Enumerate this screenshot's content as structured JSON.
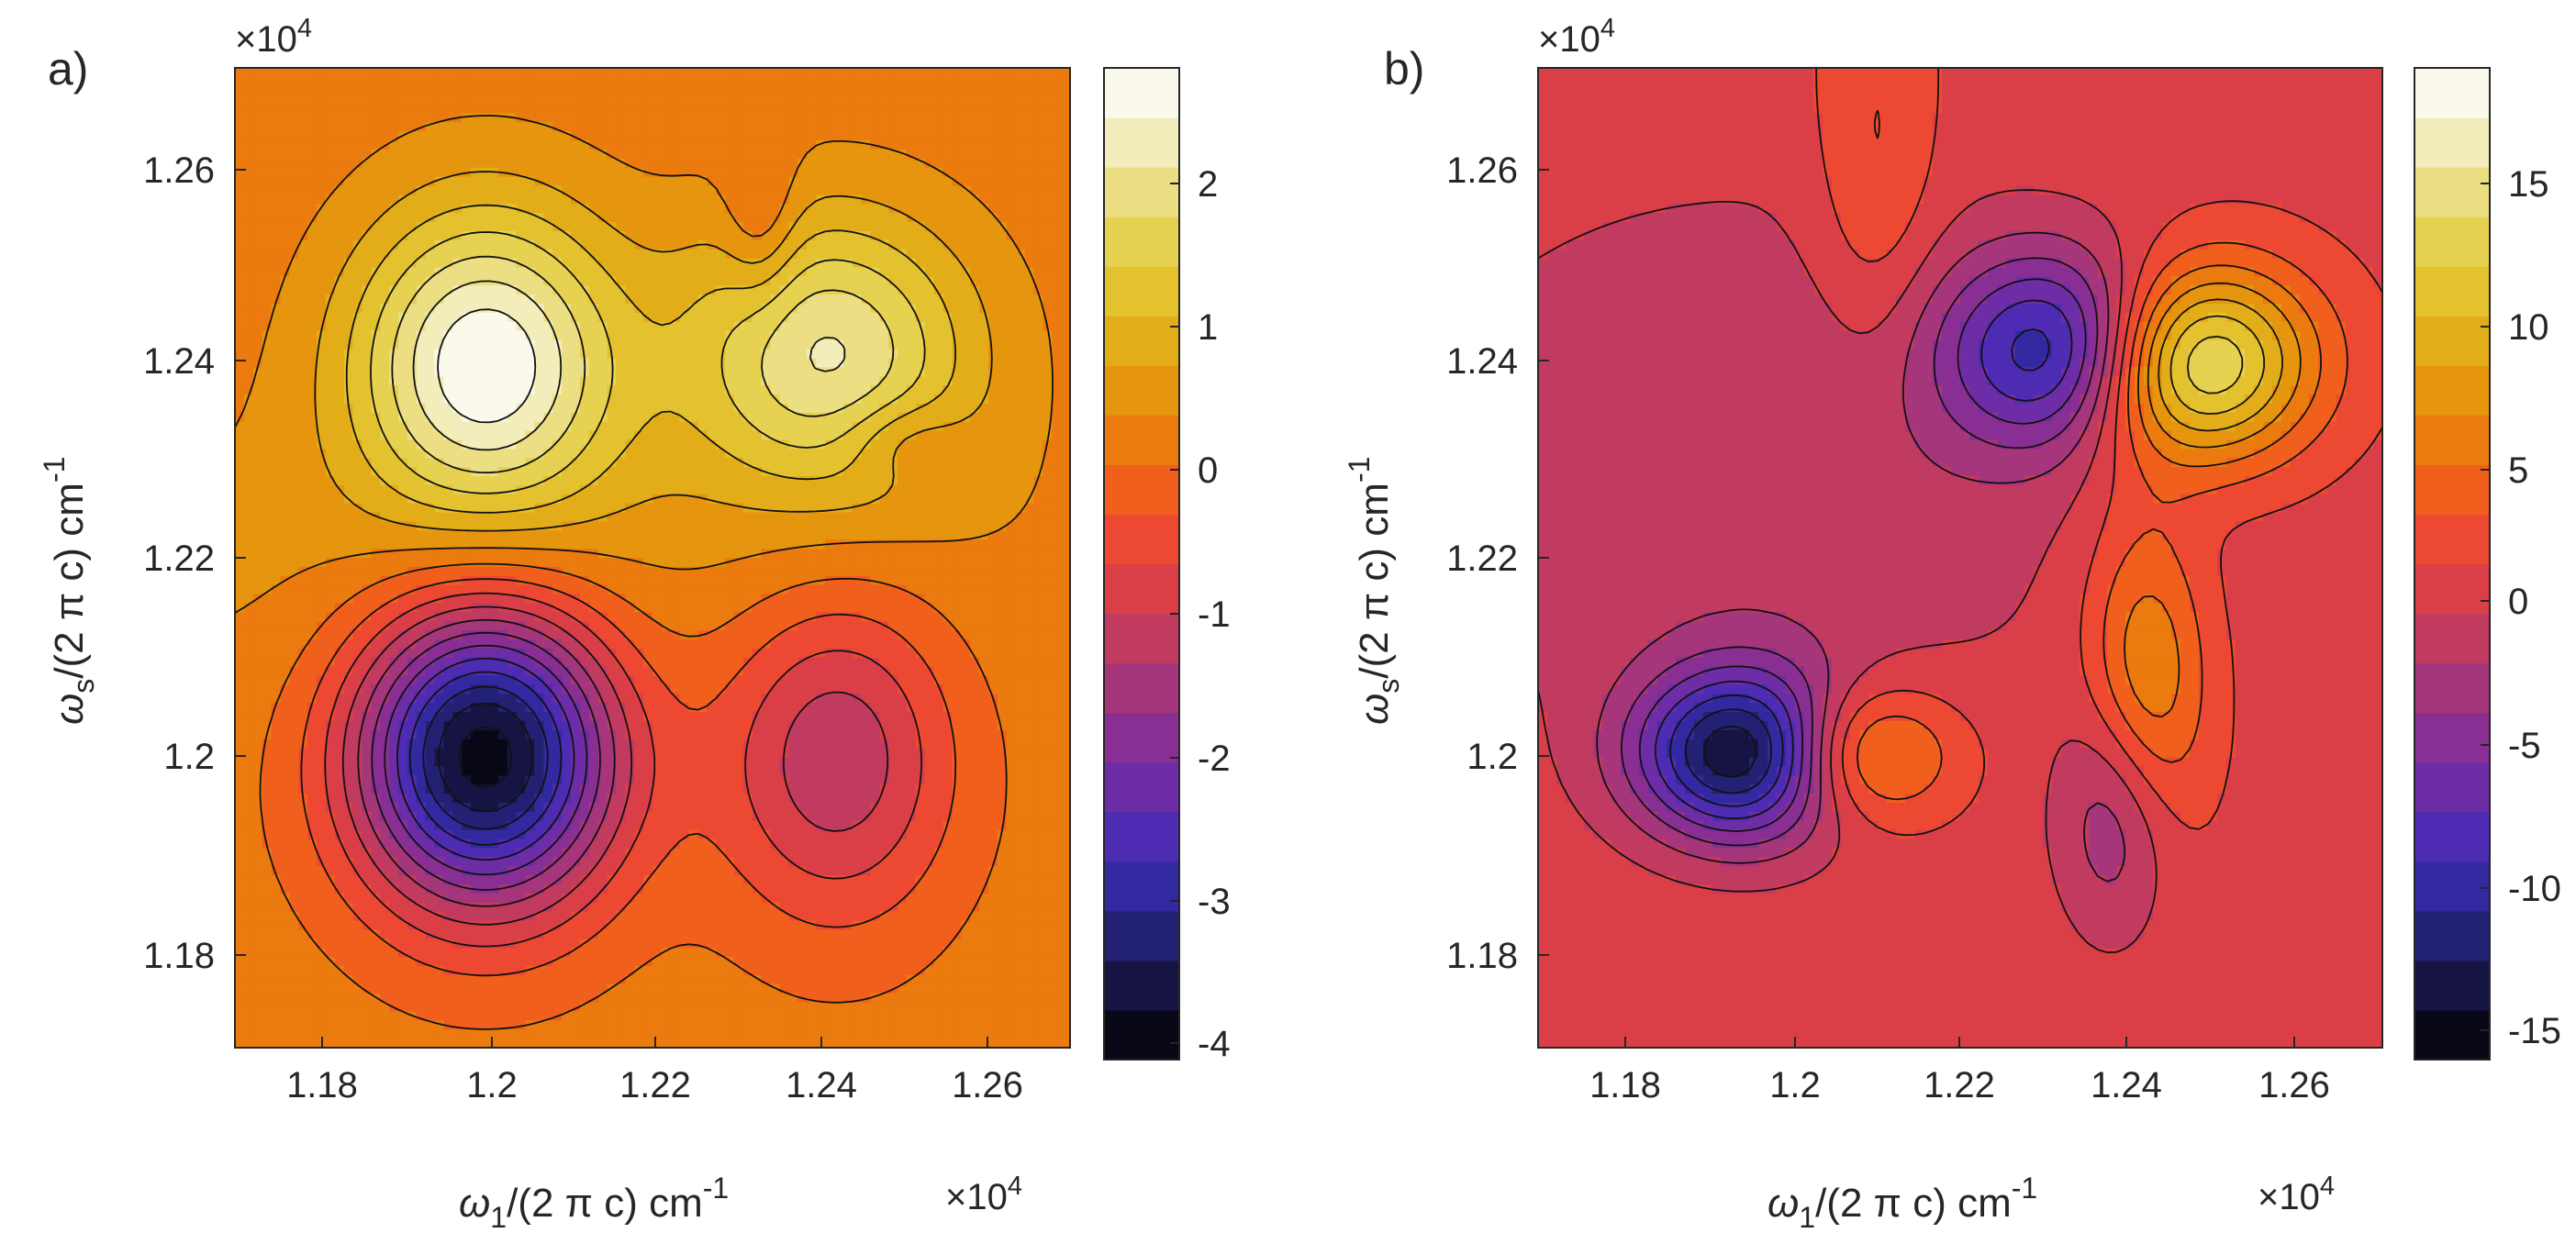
{
  "figure": {
    "colors": {
      "cmap": [
        "#000000",
        "#0e0d2a",
        "#1d1b5c",
        "#28268a",
        "#3c2bb5",
        "#5e2db0",
        "#7b2d9e",
        "#96318a",
        "#b33a6e",
        "#cf3a52",
        "#e5433e",
        "#f44f25",
        "#ee6e12",
        "#e8870c",
        "#e4a212",
        "#e2b822",
        "#e5ca3c",
        "#e9d866",
        "#efe6a0",
        "#f7f3d8",
        "#ffffff"
      ],
      "contour_line": "#111111",
      "axis": "#262626"
    },
    "panels": [
      {
        "letter": "a)",
        "xlabel_base": "ω",
        "xlabel_sub": "1",
        "xlabel_rest": "/(2 π c) cm",
        "xlabel_sup": "-1",
        "ylabel_base": "ω",
        "ylabel_sub": "s",
        "ylabel_rest": "/(2 π c) cm",
        "ylabel_sup": "-1",
        "x_exponent_prefix": "×10",
        "x_exponent": "4",
        "y_exponent_prefix": "×10",
        "y_exponent": "4",
        "x_ticks": [
          "1.18",
          "1.2",
          "1.22",
          "1.24",
          "1.26"
        ],
        "y_ticks": [
          "1.18",
          "1.2",
          "1.22",
          "1.24",
          "1.26"
        ],
        "colorbar_ticks": [
          "2",
          "1",
          "0",
          "-1",
          "-2",
          "-3",
          "-4"
        ]
      },
      {
        "letter": "b)",
        "xlabel_base": "ω",
        "xlabel_sub": "1",
        "xlabel_rest": "/(2 π c) cm",
        "xlabel_sup": "-1",
        "ylabel_base": "ω",
        "ylabel_sub": "s",
        "ylabel_rest": "/(2 π c) cm",
        "ylabel_sup": "-1",
        "x_exponent_prefix": "×10",
        "x_exponent": "4",
        "y_exponent_prefix": "×10",
        "y_exponent": "4",
        "x_ticks": [
          "1.18",
          "1.2",
          "1.22",
          "1.24",
          "1.26"
        ],
        "y_ticks": [
          "1.18",
          "1.2",
          "1.22",
          "1.24",
          "1.26"
        ],
        "colorbar_ticks": [
          "15",
          "10",
          "5",
          "0",
          "-5",
          "-10",
          "-15"
        ]
      }
    ]
  },
  "chart_data": [
    {
      "type": "heatmap",
      "subtype": "filled-contour",
      "title": "a)",
      "xlabel": "ω1/(2 π c) cm-1",
      "ylabel": "ωs/(2 π c) cm-1",
      "x_scale": 10000,
      "y_scale": 10000,
      "xlim": [
        1.17,
        1.27
      ],
      "ylim": [
        1.17,
        1.27
      ],
      "x_tick_values": [
        1.18,
        1.2,
        1.22,
        1.24,
        1.26
      ],
      "y_tick_values": [
        1.18,
        1.2,
        1.22,
        1.24,
        1.26
      ],
      "clim": [
        -4.2,
        2.7
      ],
      "colorbar_tick_values": [
        2,
        1,
        0,
        -1,
        -2,
        -3,
        -4
      ],
      "levels": 20,
      "baseline": 0.1,
      "features": [
        {
          "x": 1.2,
          "y": 1.24,
          "amp": 2.5,
          "sx": 0.011,
          "sy": 0.011
        },
        {
          "x": 1.241,
          "y": 1.241,
          "amp": 1.9,
          "sx": 0.012,
          "sy": 0.01
        },
        {
          "x": 1.2,
          "y": 1.2,
          "amp": -4.2,
          "sx": 0.011,
          "sy": 0.011
        },
        {
          "x": 1.242,
          "y": 1.2,
          "amp": -1.5,
          "sx": 0.01,
          "sy": 0.012
        },
        {
          "x": 1.233,
          "y": 1.254,
          "amp": -0.6,
          "sx": 0.003,
          "sy": 0.006
        },
        {
          "x": 1.25,
          "y": 1.232,
          "amp": -0.5,
          "sx": 0.005,
          "sy": 0.003
        },
        {
          "x": 1.2,
          "y": 1.22,
          "amp": 0.3,
          "sx": 0.05,
          "sy": 0.012
        }
      ]
    },
    {
      "type": "heatmap",
      "subtype": "filled-contour",
      "title": "b)",
      "xlabel": "ω1/(2 π c) cm-1",
      "ylabel": "ωs/(2 π c) cm-1",
      "x_scale": 10000,
      "y_scale": 10000,
      "xlim": [
        1.17,
        1.27
      ],
      "ylim": [
        1.17,
        1.27
      ],
      "x_tick_values": [
        1.18,
        1.2,
        1.22,
        1.24,
        1.26
      ],
      "y_tick_values": [
        1.18,
        1.2,
        1.22,
        1.24,
        1.26
      ],
      "clim": [
        -16.5,
        18.5
      ],
      "colorbar_tick_values": [
        15,
        10,
        5,
        0,
        -5,
        -10,
        -15
      ],
      "levels": 20,
      "baseline": 0.5,
      "features": [
        {
          "x": 1.195,
          "y": 1.2,
          "amp": -16,
          "sx": 0.009,
          "sy": 0.006
        },
        {
          "x": 1.207,
          "y": 1.2,
          "amp": 9,
          "sx": 0.008,
          "sy": 0.005
        },
        {
          "x": 1.234,
          "y": 1.241,
          "amp": -15,
          "sx": 0.01,
          "sy": 0.007
        },
        {
          "x": 1.246,
          "y": 1.24,
          "amp": 18,
          "sx": 0.01,
          "sy": 0.007
        },
        {
          "x": 1.242,
          "y": 1.206,
          "amp": 7,
          "sx": 0.005,
          "sy": 0.012
        },
        {
          "x": 1.239,
          "y": 1.194,
          "amp": -6,
          "sx": 0.005,
          "sy": 0.009
        },
        {
          "x": 1.21,
          "y": 1.26,
          "amp": 3,
          "sx": 0.005,
          "sy": 0.015
        },
        {
          "x": 1.195,
          "y": 1.23,
          "amp": -3,
          "sx": 0.03,
          "sy": 0.02
        }
      ]
    }
  ]
}
